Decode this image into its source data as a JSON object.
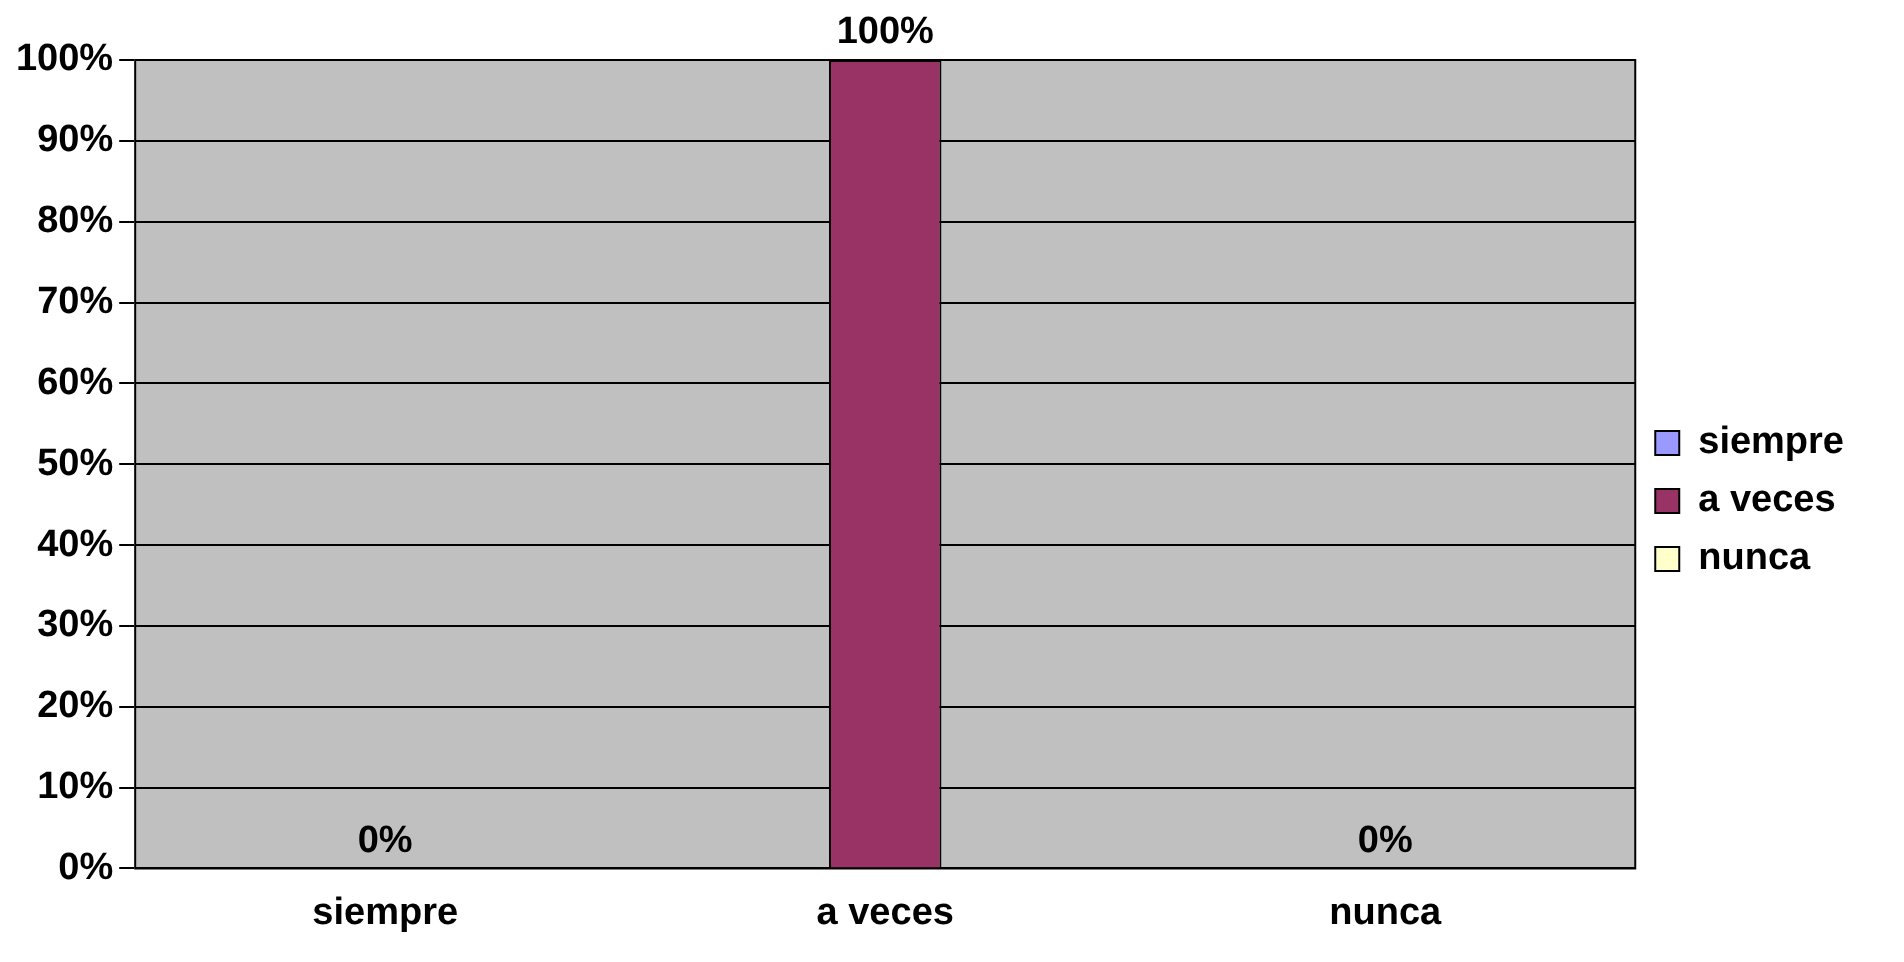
{
  "chart_data": {
    "type": "bar",
    "categories": [
      "siempre",
      "a veces",
      "nunca"
    ],
    "series": [
      {
        "name": "siempre",
        "color": "#9999ff",
        "values": [
          0,
          null,
          null
        ],
        "value_labels": [
          "0%",
          null,
          null
        ]
      },
      {
        "name": "a veces",
        "color": "#993366",
        "values": [
          null,
          100,
          null
        ],
        "value_labels": [
          null,
          "100%",
          null
        ]
      },
      {
        "name": "nunca",
        "color": "#ffffcc",
        "values": [
          null,
          null,
          0
        ],
        "value_labels": [
          null,
          null,
          "0%"
        ]
      }
    ],
    "ylim": [
      0,
      100
    ],
    "yticks": [
      {
        "value": 0,
        "label": "0%"
      },
      {
        "value": 10,
        "label": "10%"
      },
      {
        "value": 20,
        "label": "20%"
      },
      {
        "value": 30,
        "label": "30%"
      },
      {
        "value": 40,
        "label": "40%"
      },
      {
        "value": 50,
        "label": "50%"
      },
      {
        "value": 60,
        "label": "60%"
      },
      {
        "value": 70,
        "label": "70%"
      },
      {
        "value": 80,
        "label": "80%"
      },
      {
        "value": 90,
        "label": "90%"
      },
      {
        "value": 100,
        "label": "100%"
      }
    ],
    "grid": "y",
    "legend": "right"
  }
}
